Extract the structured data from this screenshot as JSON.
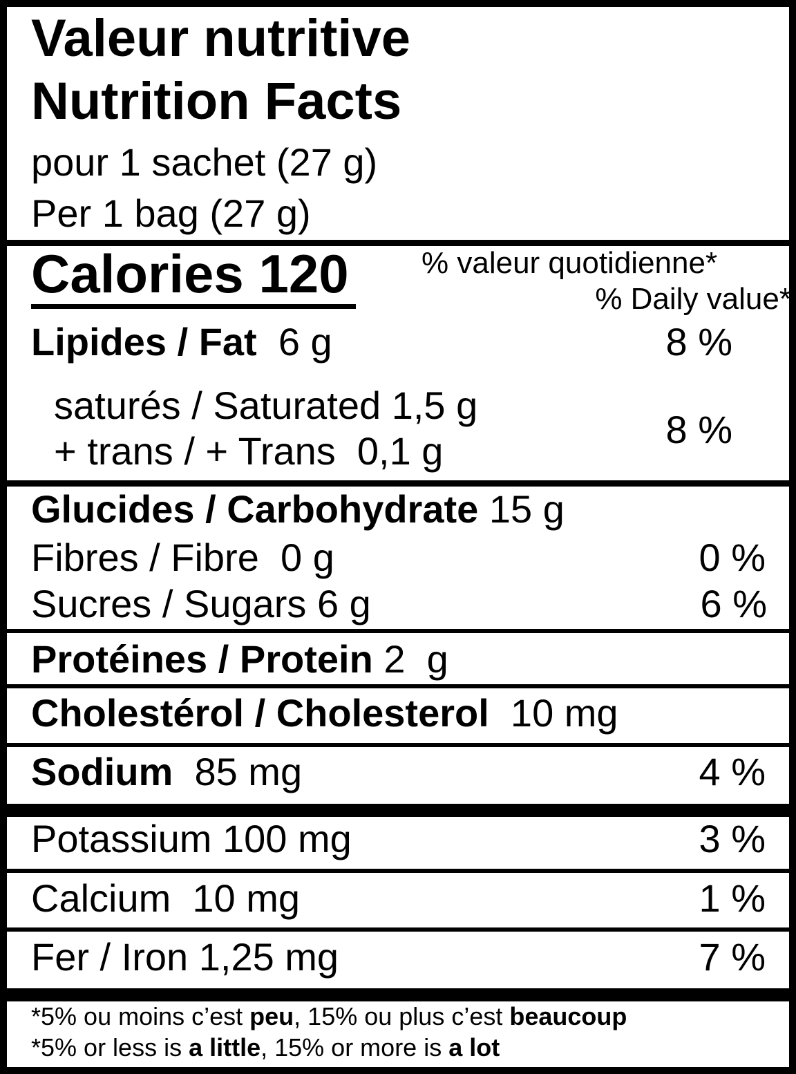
{
  "header": {
    "title_fr": "Valeur nutritive",
    "title_en": "Nutrition Facts",
    "serving_fr": "pour 1 sachet (27 g)",
    "serving_en": "Per 1 bag (27 g)"
  },
  "calories": {
    "label": "Calories",
    "value": "120"
  },
  "daily_value_header": {
    "fr": "% valeur quotidienne*",
    "en": "% Daily value*"
  },
  "nutrients": {
    "fat": {
      "label": "Lipides / Fat",
      "amount": "6 g",
      "dv": "8 %"
    },
    "saturated": {
      "label": "saturés / Saturated",
      "amount": "1,5 g"
    },
    "trans": {
      "label": "+ trans / + Trans",
      "amount": "0,1 g"
    },
    "sat_trans_dv": "8 %",
    "carbohydrate": {
      "label": "Glucides / Carbohydrate",
      "amount": "15 g"
    },
    "fibre": {
      "label": "Fibres / Fibre",
      "amount": "0 g",
      "dv": "0 %"
    },
    "sugars": {
      "label": "Sucres / Sugars",
      "amount": "6 g",
      "dv": "6 %"
    },
    "protein": {
      "label": "Protéines / Protein",
      "amount": "2  g"
    },
    "cholesterol": {
      "label": "Cholestérol / Cholesterol",
      "amount": "10 mg"
    },
    "sodium": {
      "label": "Sodium",
      "amount": "85 mg",
      "dv": "4 %"
    },
    "potassium": {
      "label": "Potassium",
      "amount": "100 mg",
      "dv": "3 %"
    },
    "calcium": {
      "label": "Calcium",
      "amount": "10 mg",
      "dv": "1 %"
    },
    "iron": {
      "label": "Fer / Iron",
      "amount": "1,25 mg",
      "dv": "7 %"
    }
  },
  "footnote": {
    "fr": [
      "*5% ou moins c’est ",
      "peu",
      ", 15% ou plus c’est ",
      "beaucoup"
    ],
    "en": [
      "*5% or less is ",
      "a little",
      ", 15% or more is ",
      "a lot"
    ]
  }
}
